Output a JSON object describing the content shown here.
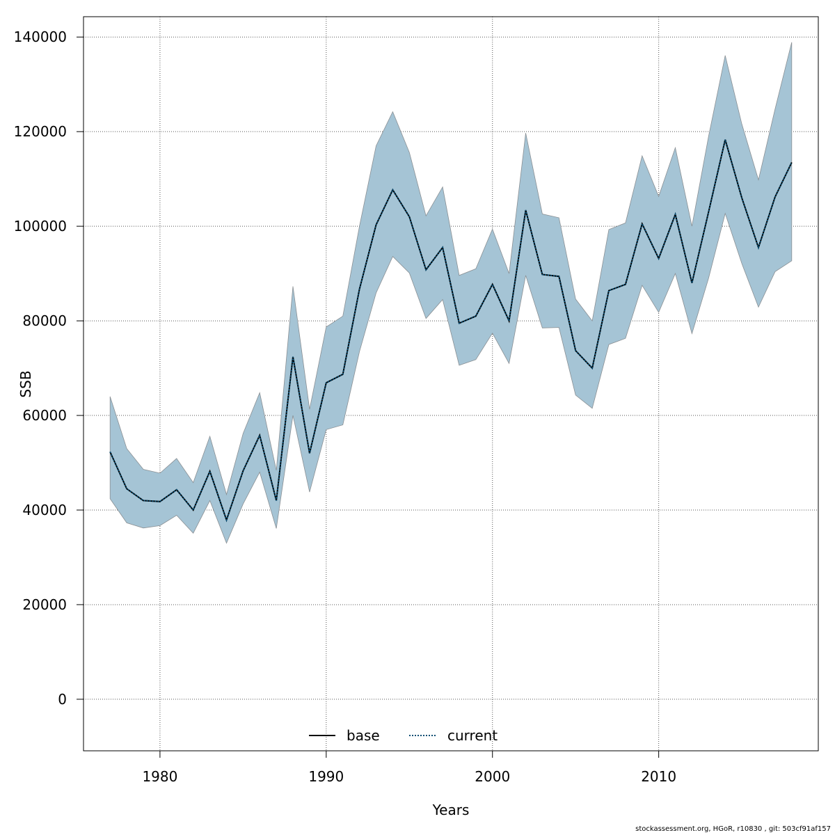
{
  "chart_data": {
    "type": "area",
    "xlabel": "Years",
    "ylabel": "SSB",
    "xlim": [
      1975.4,
      2019.6
    ],
    "ylim": [
      -10900,
      144300
    ],
    "x_ticks": [
      1980,
      1990,
      2000,
      2010
    ],
    "y_ticks": [
      0,
      20000,
      40000,
      60000,
      80000,
      100000,
      120000,
      140000
    ],
    "grid": true,
    "legend_position": "bottom-center",
    "colors": {
      "band": "#a5c4d5",
      "band_edge": "#8a8f93",
      "current": "#084d73",
      "base": "#000000"
    },
    "x": [
      1977,
      1978,
      1979,
      1980,
      1981,
      1982,
      1983,
      1984,
      1985,
      1986,
      1987,
      1988,
      1989,
      1990,
      1991,
      1992,
      1993,
      1994,
      1995,
      1996,
      1997,
      1998,
      1999,
      2000,
      2001,
      2002,
      2003,
      2004,
      2005,
      2006,
      2007,
      2008,
      2009,
      2010,
      2011,
      2012,
      2013,
      2014,
      2015,
      2016,
      2017,
      2018
    ],
    "series": [
      {
        "name": "base",
        "style": "solid",
        "values": [
          52300,
          44500,
          42000,
          41800,
          44300,
          40000,
          48200,
          37900,
          48300,
          55800,
          42000,
          72400,
          52000,
          66900,
          68700,
          86700,
          100300,
          107700,
          102000,
          90800,
          95500,
          79500,
          81000,
          87700,
          80000,
          103400,
          89800,
          89400,
          73700,
          70000,
          86400,
          87700,
          100500,
          93200,
          102500,
          88000,
          103000,
          118300,
          106000,
          95500,
          106200,
          113500
        ]
      },
      {
        "name": "current",
        "style": "dotted",
        "values": [
          52300,
          44500,
          42000,
          41800,
          44300,
          40000,
          48200,
          37900,
          48300,
          55800,
          42000,
          72400,
          52000,
          66900,
          68700,
          86700,
          100300,
          107700,
          102000,
          90800,
          95500,
          79500,
          81000,
          87700,
          80000,
          103400,
          89800,
          89400,
          73700,
          70000,
          86400,
          87700,
          100500,
          93200,
          102500,
          88000,
          103000,
          118300,
          106000,
          95500,
          106200,
          113500
        ]
      }
    ],
    "band_upper": [
      64000,
      53000,
      48600,
      47800,
      50900,
      45800,
      55600,
      43300,
      56200,
      64800,
      48400,
      87300,
      61300,
      78700,
      81000,
      100000,
      117000,
      124200,
      115600,
      102200,
      108300,
      89600,
      91000,
      99400,
      90000,
      119700,
      102600,
      101800,
      84600,
      80000,
      99300,
      100700,
      114900,
      106300,
      116600,
      100000,
      119000,
      136100,
      121600,
      109800,
      124800,
      138900
    ],
    "band_lower": [
      42400,
      37300,
      36200,
      36700,
      38900,
      35100,
      42000,
      33000,
      41300,
      48000,
      36100,
      60000,
      43800,
      57000,
      58000,
      73500,
      85900,
      93600,
      90100,
      80500,
      84500,
      70600,
      71800,
      77400,
      71000,
      89600,
      78500,
      78600,
      64300,
      61500,
      75000,
      76300,
      87500,
      81800,
      90000,
      77300,
      89000,
      102700,
      92100,
      82900,
      90400,
      92700
    ],
    "legend": [
      "base",
      "current"
    ]
  },
  "footer": "stockassessment.org, HGoR, r10830 , git: 503cf91af157"
}
